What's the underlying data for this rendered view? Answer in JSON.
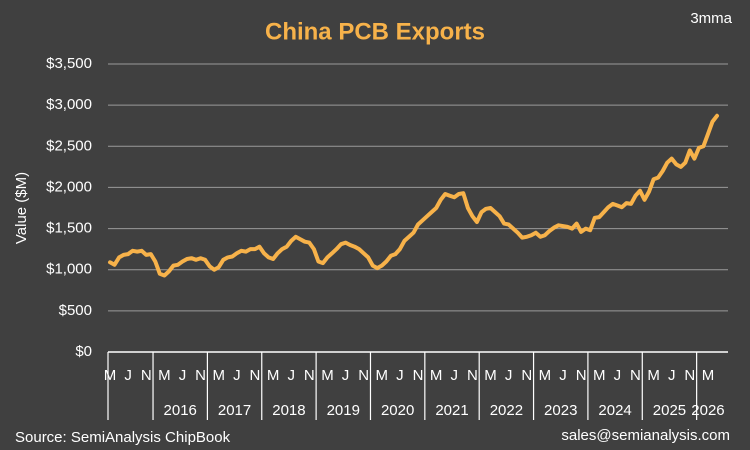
{
  "chart_data": {
    "type": "line",
    "title": "China PCB Exports",
    "subtitle": "3mma",
    "y_label": "Value ($M)",
    "source": "Source: SemiAnalysis ChipBook",
    "contact": "sales@semianalysis.com",
    "ylim": [
      0,
      3500
    ],
    "yticks": [
      {
        "value": 0,
        "label": "$0"
      },
      {
        "value": 500,
        "label": "$500"
      },
      {
        "value": 1000,
        "label": "$1,000"
      },
      {
        "value": 1500,
        "label": "$1,500"
      },
      {
        "value": 2000,
        "label": "$2,000"
      },
      {
        "value": 2500,
        "label": "$2,500"
      },
      {
        "value": 3000,
        "label": "$3,000"
      },
      {
        "value": 3500,
        "label": "$3,500"
      }
    ],
    "grid": true,
    "categories": [
      "M",
      null,
      null,
      null,
      "J",
      null,
      null,
      null,
      "N",
      null,
      null,
      null,
      "M",
      null,
      null,
      null,
      "J",
      null,
      null,
      null,
      "N",
      null,
      null,
      null,
      "M",
      null,
      null,
      null,
      "J",
      null,
      null,
      null,
      "N",
      null,
      null,
      null,
      "M",
      null,
      null,
      null,
      "J",
      null,
      null,
      null,
      "N",
      null,
      null,
      null,
      "M",
      null,
      null,
      null,
      "J",
      null,
      null,
      null,
      "N",
      null,
      null,
      null,
      "M",
      null,
      null,
      null,
      "J",
      null,
      null,
      null,
      "N",
      null,
      null,
      null,
      "M",
      null,
      null,
      null,
      "J",
      null,
      null,
      null,
      "N",
      null,
      null,
      null,
      "M",
      null,
      null,
      null,
      "J",
      null,
      null,
      null,
      "N",
      null,
      null,
      null,
      "M",
      null,
      null,
      null,
      "J",
      null,
      null,
      null,
      "N",
      null,
      null,
      null,
      "M",
      null,
      null,
      null,
      "J",
      null,
      null,
      null,
      "N",
      null,
      null,
      null,
      "M",
      null,
      null,
      null,
      "J",
      null,
      null,
      null,
      "N",
      null,
      null,
      null,
      "M",
      null,
      null
    ],
    "years": [
      "2016",
      "2017",
      "2018",
      "2019",
      "2020",
      "2021",
      "2022",
      "2023",
      "2024",
      "2025",
      "2026"
    ],
    "series": [
      {
        "name": "China PCB Exports",
        "color": "#f7b24a",
        "values": [
          1090,
          1060,
          1150,
          1180,
          1190,
          1230,
          1220,
          1230,
          1180,
          1190,
          1100,
          950,
          930,
          980,
          1050,
          1060,
          1100,
          1130,
          1140,
          1120,
          1140,
          1120,
          1040,
          1000,
          1030,
          1120,
          1150,
          1160,
          1200,
          1230,
          1220,
          1250,
          1250,
          1280,
          1200,
          1150,
          1130,
          1200,
          1250,
          1280,
          1350,
          1400,
          1370,
          1340,
          1330,
          1250,
          1100,
          1080,
          1150,
          1200,
          1250,
          1310,
          1330,
          1300,
          1280,
          1250,
          1200,
          1150,
          1050,
          1020,
          1050,
          1100,
          1170,
          1190,
          1250,
          1350,
          1400,
          1450,
          1550,
          1600,
          1650,
          1700,
          1750,
          1850,
          1920,
          1900,
          1880,
          1920,
          1930,
          1750,
          1650,
          1580,
          1700,
          1740,
          1750,
          1700,
          1650,
          1560,
          1550,
          1500,
          1450,
          1390,
          1400,
          1420,
          1450,
          1400,
          1420,
          1470,
          1510,
          1540,
          1530,
          1520,
          1500,
          1560,
          1460,
          1500,
          1480,
          1630,
          1640,
          1700,
          1760,
          1800,
          1780,
          1760,
          1810,
          1800,
          1900,
          1960,
          1850,
          1950,
          2100,
          2120,
          2200,
          2300,
          2350,
          2280,
          2250,
          2300,
          2450,
          2350,
          2480,
          2500,
          2650,
          2800,
          2870
        ]
      }
    ]
  }
}
